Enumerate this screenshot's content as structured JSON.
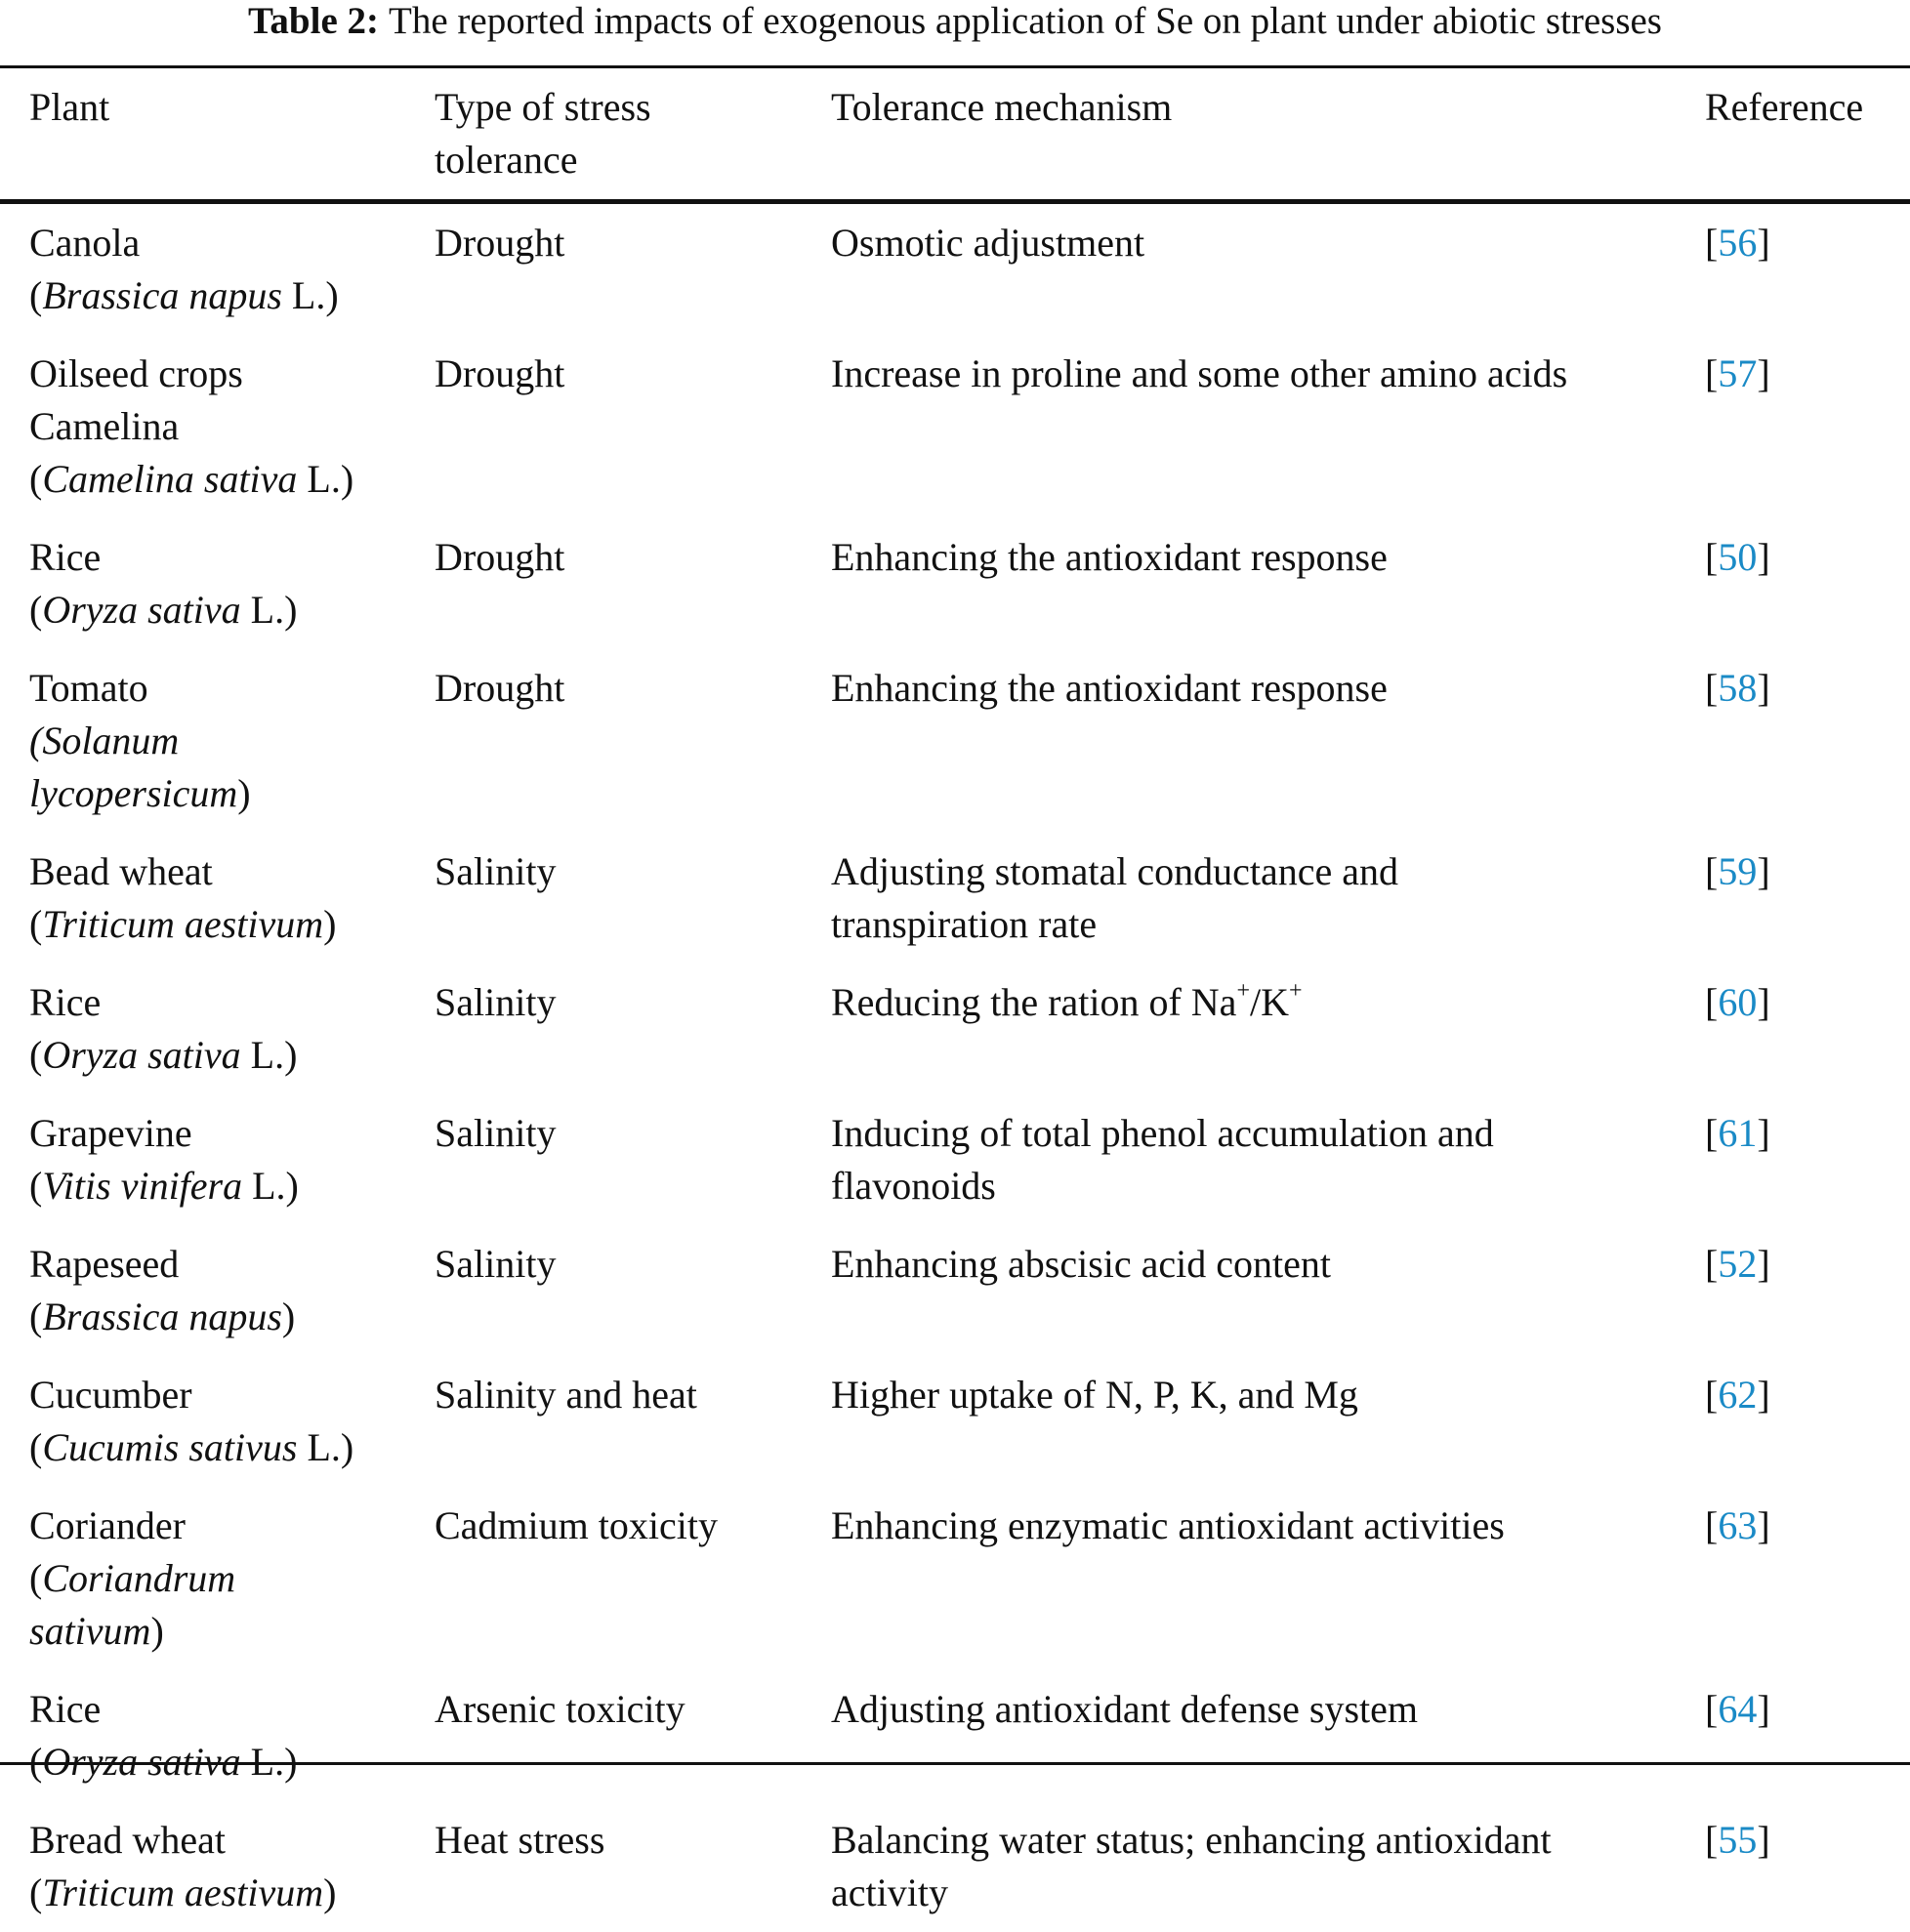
{
  "title": {
    "label": "Table 2:",
    "text": "The reported impacts of exogenous application of Se on plant under abiotic stresses"
  },
  "colors": {
    "reference_link": "#1a8ac6"
  },
  "headers": [
    [
      "Plant"
    ],
    [
      "Type of stress",
      "tolerance"
    ],
    [
      "Tolerance mechanism"
    ],
    [
      "Reference"
    ]
  ],
  "rows": [
    {
      "plant": [
        [
          {
            "t": "Canola"
          }
        ],
        [
          {
            "t": "("
          },
          {
            "t": "Brassica napus",
            "i": true
          },
          {
            "t": " L.)"
          }
        ]
      ],
      "stress": [
        "Drought"
      ],
      "mechanism": [
        [
          {
            "t": "Osmotic adjustment"
          }
        ]
      ],
      "ref": "56"
    },
    {
      "plant": [
        [
          {
            "t": "Oilseed crops"
          }
        ],
        [
          {
            "t": "Camelina"
          }
        ],
        [
          {
            "t": "("
          },
          {
            "t": "Camelina sativa",
            "i": true
          },
          {
            "t": " L.)"
          }
        ]
      ],
      "stress": [
        "Drought"
      ],
      "mechanism": [
        [
          {
            "t": "Increase in proline and some other amino acids"
          }
        ]
      ],
      "ref": "57"
    },
    {
      "plant": [
        [
          {
            "t": "Rice"
          }
        ],
        [
          {
            "t": "("
          },
          {
            "t": "Oryza sativa",
            "i": true
          },
          {
            "t": " L.)"
          }
        ]
      ],
      "stress": [
        "Drought"
      ],
      "mechanism": [
        [
          {
            "t": "Enhancing the antioxidant response"
          }
        ]
      ],
      "ref": "50"
    },
    {
      "plant": [
        [
          {
            "t": "Tomato"
          }
        ],
        [
          {
            "t": "(Solanum",
            "i": true
          }
        ],
        [
          {
            "t": "lycopersicum",
            "i": true
          },
          {
            "t": ")"
          }
        ]
      ],
      "stress": [
        "Drought"
      ],
      "mechanism": [
        [
          {
            "t": "Enhancing the antioxidant response"
          }
        ]
      ],
      "ref": "58"
    },
    {
      "plant": [
        [
          {
            "t": "Bead wheat"
          }
        ],
        [
          {
            "t": "("
          },
          {
            "t": "Triticum aestivum",
            "i": true
          },
          {
            "t": ")"
          }
        ]
      ],
      "stress": [
        "Salinity"
      ],
      "mechanism": [
        [
          {
            "t": "Adjusting stomatal conductance and"
          }
        ],
        [
          {
            "t": "transpiration rate"
          }
        ]
      ],
      "ref": "59"
    },
    {
      "plant": [
        [
          {
            "t": "Rice"
          }
        ],
        [
          {
            "t": "("
          },
          {
            "t": "Oryza sativa",
            "i": true
          },
          {
            "t": " L.)"
          }
        ]
      ],
      "stress": [
        "Salinity"
      ],
      "mechanism": [
        [
          {
            "t": "Reducing the ration of Na"
          },
          {
            "t": "+",
            "sup": true
          },
          {
            "t": "/K"
          },
          {
            "t": "+",
            "sup": true
          }
        ]
      ],
      "ref": "60"
    },
    {
      "plant": [
        [
          {
            "t": "Grapevine"
          }
        ],
        [
          {
            "t": "("
          },
          {
            "t": "Vitis vinifera",
            "i": true
          },
          {
            "t": " L.)"
          }
        ]
      ],
      "stress": [
        "Salinity"
      ],
      "mechanism": [
        [
          {
            "t": "Inducing of total phenol accumulation and"
          }
        ],
        [
          {
            "t": "flavonoids"
          }
        ]
      ],
      "ref": "61"
    },
    {
      "plant": [
        [
          {
            "t": "Rapeseed"
          }
        ],
        [
          {
            "t": "("
          },
          {
            "t": "Brassica napus",
            "i": true
          },
          {
            "t": ")"
          }
        ]
      ],
      "stress": [
        "Salinity"
      ],
      "mechanism": [
        [
          {
            "t": "Enhancing abscisic acid content"
          }
        ]
      ],
      "ref": "52"
    },
    {
      "plant": [
        [
          {
            "t": "Cucumber"
          }
        ],
        [
          {
            "t": "("
          },
          {
            "t": "Cucumis sativus",
            "i": true
          },
          {
            "t": " L.)"
          }
        ]
      ],
      "stress": [
        "Salinity and heat"
      ],
      "mechanism": [
        [
          {
            "t": "Higher uptake of N, P, K, and Mg"
          }
        ]
      ],
      "ref": "62"
    },
    {
      "plant": [
        [
          {
            "t": "Coriander"
          }
        ],
        [
          {
            "t": "("
          },
          {
            "t": "Coriandrum",
            "i": true
          }
        ],
        [
          {
            "t": "sativum",
            "i": true
          },
          {
            "t": ")"
          }
        ]
      ],
      "stress": [
        "Cadmium toxicity"
      ],
      "mechanism": [
        [
          {
            "t": "Enhancing enzymatic antioxidant activities"
          }
        ]
      ],
      "ref": "63"
    },
    {
      "plant": [
        [
          {
            "t": "Rice"
          }
        ],
        [
          {
            "t": "("
          },
          {
            "t": "Oryza sativa",
            "i": true
          },
          {
            "t": " L.)"
          }
        ]
      ],
      "stress": [
        "Arsenic toxicity"
      ],
      "mechanism": [
        [
          {
            "t": "Adjusting antioxidant defense system"
          }
        ]
      ],
      "ref": "64"
    },
    {
      "plant": [
        [
          {
            "t": "Bread wheat"
          }
        ],
        [
          {
            "t": "("
          },
          {
            "t": "Triticum aestivum",
            "i": true
          },
          {
            "t": ")"
          }
        ]
      ],
      "stress": [
        "Heat stress"
      ],
      "mechanism": [
        [
          {
            "t": "Balancing water status; enhancing antioxidant"
          }
        ],
        [
          {
            "t": "activity"
          }
        ]
      ],
      "ref": "55"
    }
  ]
}
